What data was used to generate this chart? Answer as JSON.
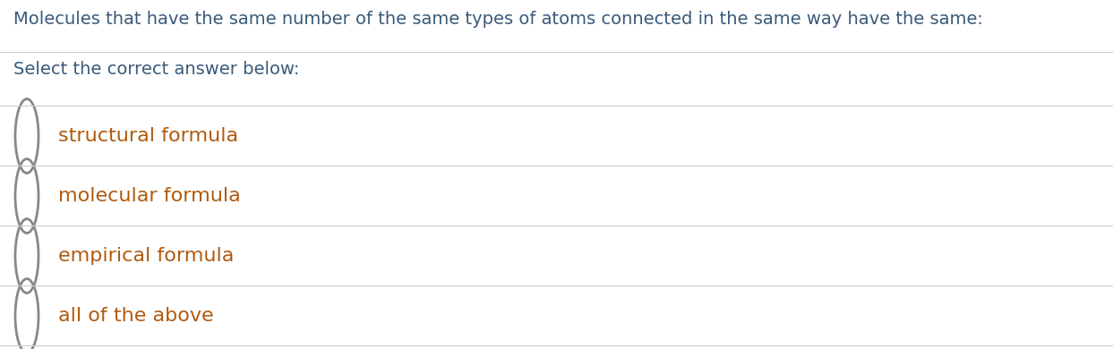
{
  "question": "Molecules that have the same number of the same types of atoms connected in the same way have the same:",
  "prompt": "Select the correct answer below:",
  "options": [
    "structural formula",
    "molecular formula",
    "empirical formula",
    "all of the above"
  ],
  "bg_color": "#ffffff",
  "question_color": "#3a5a7a",
  "prompt_color": "#3a5a7a",
  "option_color": "#b05a10",
  "line_color": "#cccccc",
  "question_fontsize": 14,
  "prompt_fontsize": 14,
  "option_fontsize": 16,
  "circle_edge_color": "#888888",
  "circle_linewidth": 2.0
}
